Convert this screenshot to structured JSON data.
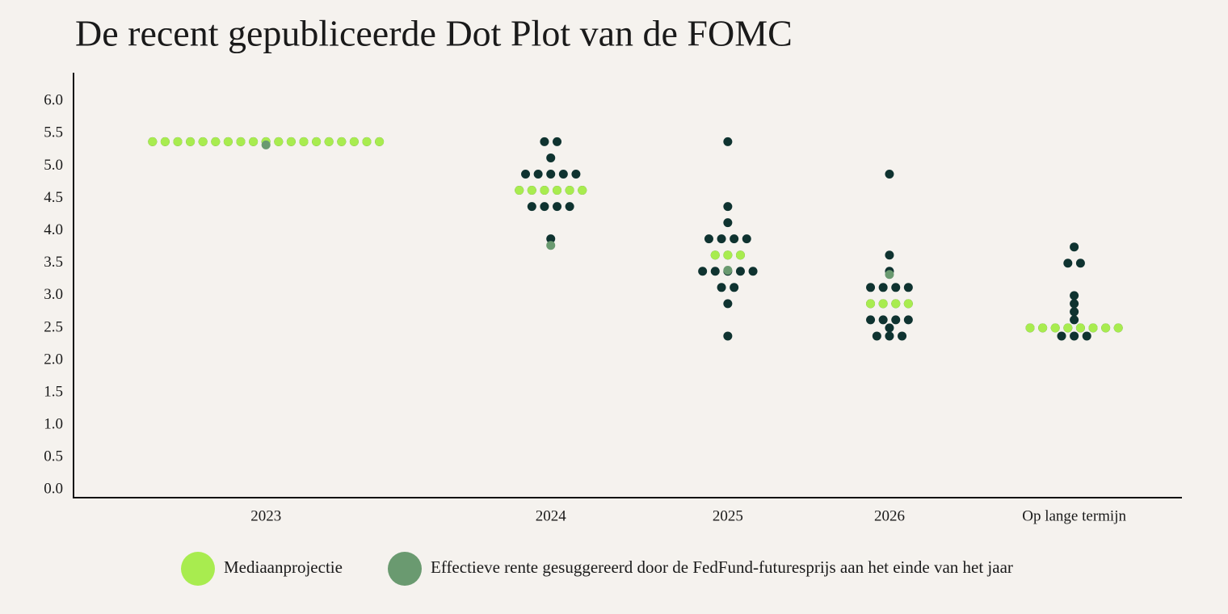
{
  "chart_data": {
    "type": "dot",
    "title": "De recent gepubliceerde Dot Plot van de FOMC",
    "categories": [
      "2023",
      "2024",
      "2025",
      "2026",
      "Op lange termijn"
    ],
    "participants": [
      [
        5.375,
        5.375,
        5.375,
        5.375,
        5.375,
        5.375,
        5.375,
        5.375,
        5.375,
        5.375,
        5.375,
        5.375,
        5.375,
        5.375,
        5.375,
        5.375,
        5.375,
        5.375,
        5.375
      ],
      [
        5.375,
        5.375,
        5.125,
        4.875,
        4.875,
        4.875,
        4.875,
        4.875,
        4.625,
        4.625,
        4.625,
        4.625,
        4.625,
        4.625,
        4.375,
        4.375,
        4.375,
        4.375,
        3.875
      ],
      [
        5.375,
        4.375,
        4.125,
        3.875,
        3.875,
        3.875,
        3.875,
        3.625,
        3.625,
        3.625,
        3.375,
        3.375,
        3.375,
        3.375,
        3.375,
        3.125,
        3.125,
        2.875,
        2.375
      ],
      [
        4.875,
        3.625,
        3.375,
        3.125,
        3.125,
        3.125,
        3.125,
        2.875,
        2.875,
        2.875,
        2.875,
        2.625,
        2.625,
        2.625,
        2.625,
        2.5,
        2.375,
        2.375,
        2.375
      ],
      [
        3.75,
        3.5,
        3.5,
        3.0,
        2.875,
        2.75,
        2.625,
        2.5,
        2.5,
        2.5,
        2.5,
        2.5,
        2.5,
        2.5,
        2.5,
        2.375,
        2.375,
        2.375
      ]
    ],
    "participant_color": "#0f3330",
    "series": [
      {
        "name": "Mediaanprojectie",
        "color": "#a8ec4f",
        "values": [
          5.375,
          4.625,
          3.625,
          2.875,
          2.5
        ]
      },
      {
        "name": "Effectieve rente gesuggereerd door de FedFund-futuresprijs aan het einde van het jaar",
        "color": "#6a9a70",
        "values": [
          5.325,
          3.775,
          3.39,
          3.325,
          null
        ]
      }
    ],
    "ylim": [
      -0.12,
      6.44
    ],
    "yticks": [
      {
        "value": 0,
        "label": "0.0"
      },
      {
        "value": 0.5,
        "label": "0.5"
      },
      {
        "value": 1,
        "label": "1.0"
      },
      {
        "value": 1.5,
        "label": "1.5"
      },
      {
        "value": 2,
        "label": "2.0"
      },
      {
        "value": 2.5,
        "label": "2.5"
      },
      {
        "value": 3,
        "label": "3.0"
      },
      {
        "value": 3.5,
        "label": "3.5"
      },
      {
        "value": 4,
        "label": "4.0"
      },
      {
        "value": 4.5,
        "label": "4.5"
      },
      {
        "value": 5,
        "label": "5.0"
      },
      {
        "value": 5.5,
        "label": "5.5"
      },
      {
        "value": 6,
        "label": "6.0"
      }
    ],
    "grid": false
  }
}
